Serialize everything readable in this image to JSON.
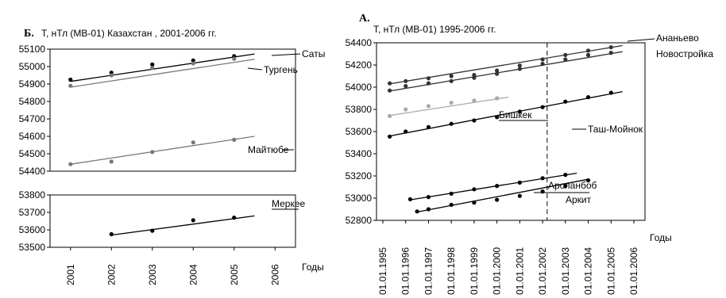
{
  "chart_data": [
    {
      "type": "scatter",
      "panel_tag": "Б.",
      "title": "Т, нТл (МВ-01) Казахстан , 2001-2006 гг.",
      "xlabel": "Годы",
      "x_ticks": [
        "2001",
        "2002",
        "2003",
        "2004",
        "2005",
        "2006"
      ],
      "xlim": [
        2001,
        2006
      ],
      "grid": false,
      "upper": {
        "ylim": [
          54400,
          55100
        ],
        "y_ticks": [
          "55100",
          "55000",
          "54900",
          "54800",
          "54700",
          "54600",
          "54500",
          "54400"
        ],
        "series": [
          {
            "name": "Саты",
            "color": "#000000",
            "points": [
              [
                2001,
                54925
              ],
              [
                2002,
                54965
              ],
              [
                2003,
                55012
              ],
              [
                2004,
                55035
              ],
              [
                2005,
                55060
              ]
            ],
            "trend": [
              [
                2001,
                54915
              ],
              [
                2005.5,
                55072
              ]
            ]
          },
          {
            "name": "Тургень",
            "color": "#777777",
            "points": [
              [
                2001,
                54890
              ],
              [
                2002,
                54950
              ],
              [
                2003,
                54992
              ],
              [
                2004,
                55018
              ],
              [
                2005,
                55045
              ]
            ],
            "trend": [
              [
                2001,
                54882
              ],
              [
                2005.5,
                55042
              ]
            ]
          },
          {
            "name": "Майтюбе",
            "color": "#777777",
            "points": [
              [
                2001,
                54440
              ],
              [
                2002,
                54455
              ],
              [
                2003,
                54510
              ],
              [
                2004,
                54565
              ],
              [
                2005,
                54580
              ]
            ],
            "trend": [
              [
                2001,
                54440
              ],
              [
                2005.5,
                54600
              ]
            ]
          }
        ]
      },
      "lower": {
        "ylim": [
          53500,
          53800
        ],
        "y_ticks": [
          "53800",
          "53700",
          "53600",
          "53500"
        ],
        "series": [
          {
            "name": "Меркее",
            "color": "#000000",
            "points": [
              [
                2002,
                53575
              ],
              [
                2003,
                53595
              ],
              [
                2004,
                53655
              ],
              [
                2005,
                53670
              ]
            ],
            "trend": [
              [
                2002,
                53570
              ],
              [
                2005.5,
                53680
              ]
            ]
          }
        ]
      }
    },
    {
      "type": "scatter",
      "panel_tag": "А.",
      "title": "Т, нТл (МВ-01) 1995-2006 гг.",
      "xlabel": "Годы",
      "x_ticks": [
        "01.01.1995",
        "01.01.1996",
        "01.01.1997",
        "01.01.1998",
        "01.01.1999",
        "01.01.2000",
        "01.01.2001",
        "01.01.2002",
        "01.01.2003",
        "01.01.2004",
        "01.01.2005",
        "01.01.2006"
      ],
      "xlim": [
        1995,
        2006
      ],
      "ylim": [
        52800,
        54400
      ],
      "y_ticks": [
        "54400",
        "54200",
        "54000",
        "53800",
        "53600",
        "53400",
        "53200",
        "53000",
        "52800"
      ],
      "grid": false,
      "series": [
        {
          "name": "Ананьево",
          "color": "#333333",
          "points": [
            [
              1995.3,
              54035
            ],
            [
              1996,
              54055
            ],
            [
              1997,
              54080
            ],
            [
              1998,
              54100
            ],
            [
              1999,
              54110
            ],
            [
              2000,
              54150
            ],
            [
              2001,
              54195
            ],
            [
              2002,
              54250
            ],
            [
              2003,
              54290
            ],
            [
              2004,
              54330
            ],
            [
              2005,
              54360
            ]
          ],
          "trend": [
            [
              1995.3,
              54030
            ],
            [
              2005.5,
              54375
            ]
          ]
        },
        {
          "name": "Новостройка",
          "color": "#333333",
          "points": [
            [
              1995.3,
              53970
            ],
            [
              1996,
              54010
            ],
            [
              1997,
              54035
            ],
            [
              1998,
              54055
            ],
            [
              1999,
              54085
            ],
            [
              2000,
              54120
            ],
            [
              2001,
              54165
            ],
            [
              2002,
              54210
            ],
            [
              2003,
              54250
            ],
            [
              2004,
              54290
            ],
            [
              2005,
              54310
            ]
          ],
          "trend": [
            [
              1995.3,
              53965
            ],
            [
              2005.5,
              54320
            ]
          ]
        },
        {
          "name": "Бишкек",
          "color": "#aaaaaa",
          "points": [
            [
              1995.3,
              53740
            ],
            [
              1996,
              53800
            ],
            [
              1997,
              53830
            ],
            [
              1998,
              53860
            ],
            [
              1999,
              53880
            ],
            [
              2000,
              53900
            ]
          ],
          "trend": [
            [
              1995.3,
              53745
            ],
            [
              2000.5,
              53910
            ]
          ]
        },
        {
          "name": "Таш-Мойнок",
          "color": "#000000",
          "points": [
            [
              1995.3,
              53555
            ],
            [
              1996,
              53600
            ],
            [
              1997,
              53640
            ],
            [
              1998,
              53670
            ],
            [
              1999,
              53700
            ],
            [
              2000,
              53730
            ],
            [
              2001,
              53780
            ],
            [
              2002,
              53820
            ],
            [
              2003,
              53870
            ],
            [
              2004,
              53910
            ],
            [
              2005,
              53950
            ]
          ],
          "trend": [
            [
              1995.3,
              53560
            ],
            [
              2005.5,
              53960
            ]
          ]
        },
        {
          "name": "Арсланбоб",
          "color": "#000000",
          "points": [
            [
              1996.2,
              52990
            ],
            [
              1997,
              53010
            ],
            [
              1998,
              53040
            ],
            [
              1999,
              53080
            ],
            [
              2000,
              53110
            ],
            [
              2001,
              53140
            ],
            [
              2002,
              53180
            ],
            [
              2003,
              53210
            ]
          ],
          "trend": [
            [
              1996.2,
              52985
            ],
            [
              2003.5,
              53225
            ]
          ]
        },
        {
          "name": "Аркит",
          "color": "#000000",
          "points": [
            [
              1996.5,
              52880
            ],
            [
              1997,
              52900
            ],
            [
              1998,
              52940
            ],
            [
              1999,
              52960
            ],
            [
              2000,
              52985
            ],
            [
              2001,
              53020
            ],
            [
              2002,
              53060
            ],
            [
              2003,
              53110
            ],
            [
              2004,
              53160
            ]
          ],
          "trend": [
            [
              1996.5,
              52875
            ],
            [
              2004,
              53170
            ]
          ]
        }
      ]
    }
  ]
}
